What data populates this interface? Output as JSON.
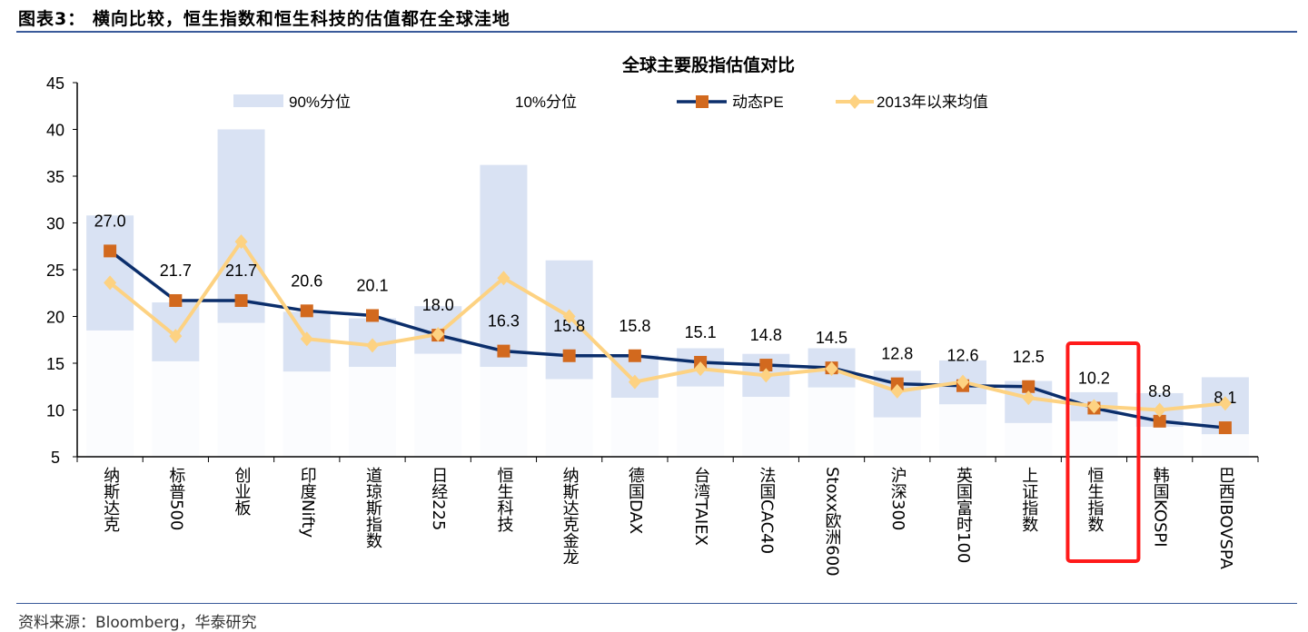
{
  "header": {
    "figure_title": "图表3： 横向比较，恒生指数和恒生科技的估值都在全球洼地"
  },
  "footer": {
    "source": "资料来源：Bloomberg，华泰研究"
  },
  "colors": {
    "band": "#d9e2f3",
    "pe_line": "#0b2e6b",
    "pe_marker": "#d2691e",
    "avg_line": "#fdd282",
    "highlight": "#ff1a1a",
    "rule": "#3a5a9a"
  },
  "chart_data": {
    "type": "bar+line",
    "title": "全球主要股指估值对比",
    "ylim": [
      5,
      45
    ],
    "yticks": [
      5,
      10,
      15,
      20,
      25,
      30,
      35,
      40,
      45
    ],
    "grid": false,
    "legend": {
      "placement": "top",
      "entries": [
        "90%分位",
        "10%分位",
        "动态PE",
        "2013年以来均值"
      ]
    },
    "categories": [
      "纳斯达克",
      "标普500",
      "创业板",
      "印度Nifty",
      "道琼斯指数",
      "日经225",
      "恒生科技",
      "纳斯达克金龙",
      "德国DAX",
      "台湾TAIEX",
      "法国CAC40",
      "Stoxx欧洲600",
      "沪深300",
      "英国富时100",
      "上证指数",
      "恒生指数",
      "韩国KOSPI",
      "巴西IBOVSPA"
    ],
    "series": [
      {
        "name": "90%分位",
        "type": "bar",
        "values": [
          30.8,
          21.5,
          40.0,
          20.5,
          19.8,
          21.1,
          36.2,
          26.0,
          15.9,
          16.6,
          16.0,
          16.6,
          14.2,
          15.3,
          13.1,
          11.9,
          11.8,
          13.5
        ]
      },
      {
        "name": "10%分位",
        "type": "bar",
        "values": [
          18.5,
          15.2,
          19.3,
          14.1,
          14.6,
          16.0,
          14.6,
          13.3,
          11.3,
          12.5,
          11.4,
          12.4,
          9.2,
          10.6,
          8.6,
          8.8,
          8.2,
          7.4
        ]
      },
      {
        "name": "动态PE",
        "type": "line",
        "values": [
          27.0,
          21.7,
          21.7,
          20.6,
          20.1,
          18.0,
          16.3,
          15.8,
          15.8,
          15.1,
          14.8,
          14.5,
          12.8,
          12.6,
          12.5,
          10.2,
          8.8,
          8.1
        ],
        "labels": [
          "27.0",
          "21.7",
          "21.7",
          "20.6",
          "20.1",
          "18.0",
          "16.3",
          "15.8",
          "15.8",
          "15.1",
          "14.8",
          "14.5",
          "12.8",
          "12.6",
          "12.5",
          "10.2",
          "8.8",
          "8.1"
        ]
      },
      {
        "name": "2013年以来均值",
        "type": "line",
        "values": [
          23.6,
          17.9,
          28.0,
          17.6,
          16.9,
          18.1,
          24.1,
          20.0,
          13.0,
          14.4,
          13.7,
          14.4,
          12.0,
          13.0,
          11.3,
          10.4,
          10.0,
          10.7
        ]
      }
    ],
    "highlight_category": "恒生指数"
  }
}
